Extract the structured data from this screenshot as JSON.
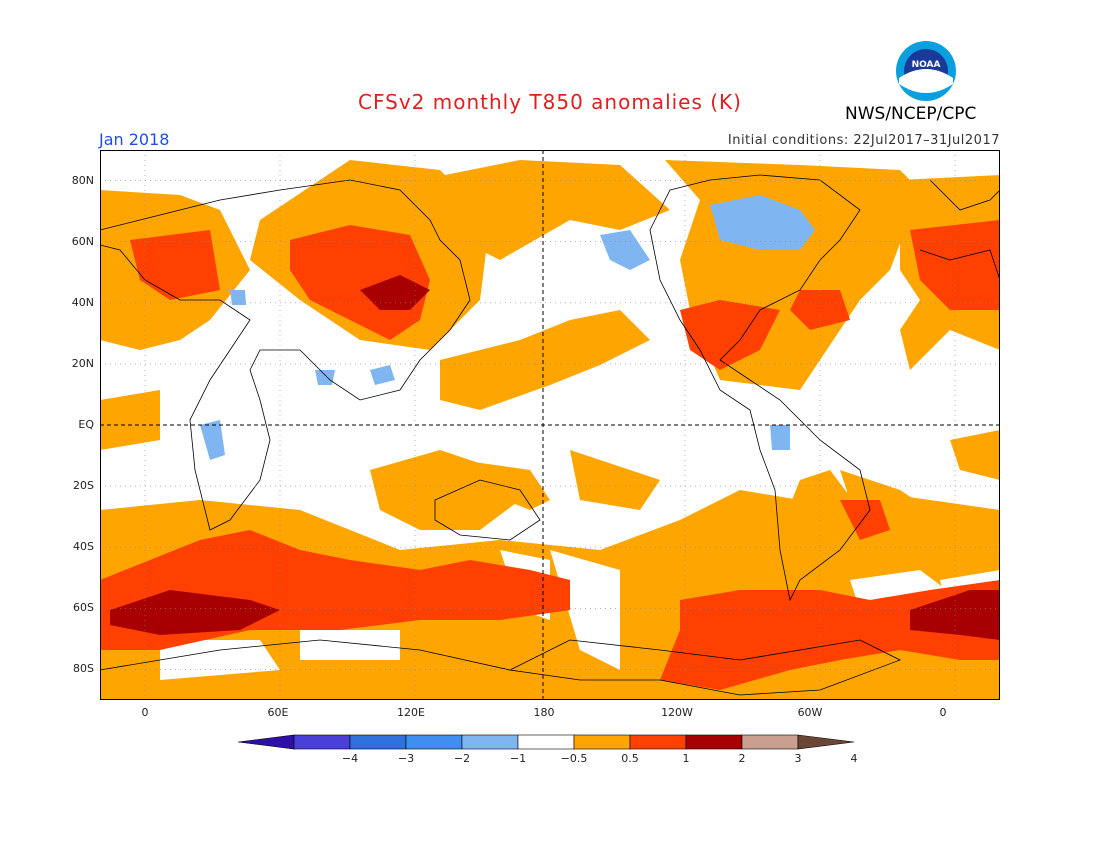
{
  "header": {
    "title": "CFSv2 monthly T850 anomalies (K)",
    "agency": "NWS/NCEP/CPC",
    "month": "Jan 2018",
    "initial_conditions": "Initial conditions: 22Jul2017–31Jul2017"
  },
  "logo": {
    "text": "NOAA"
  },
  "map": {
    "projection": "cylindrical-equidistant",
    "lon_range": [
      -20,
      380
    ],
    "lat_range": [
      -90,
      90
    ],
    "lat_labels": [
      "80N",
      "60N",
      "40N",
      "20N",
      "EQ",
      "20S",
      "40S",
      "60S",
      "80S"
    ],
    "lon_labels": [
      "0",
      "60E",
      "120E",
      "180",
      "120W",
      "60W",
      "0"
    ]
  },
  "colorbar": {
    "levels": [
      "−4",
      "−3",
      "−2",
      "−1",
      "−0.5",
      "0.5",
      "1",
      "2",
      "3",
      "4"
    ],
    "colors": [
      "#2e0fa8",
      "#4a3fd6",
      "#2f6fde",
      "#3f8ff0",
      "#7fb6f2",
      "#ffffff",
      "#ffa500",
      "#ff4000",
      "#a80000",
      "#c9a090",
      "#6b4535"
    ]
  }
}
